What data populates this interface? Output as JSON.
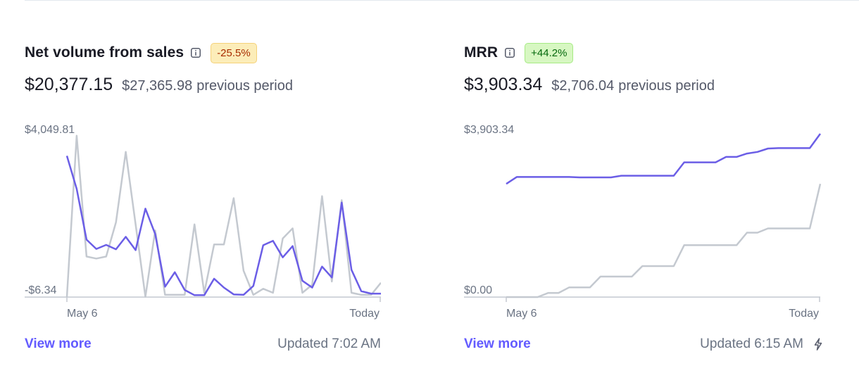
{
  "cards": [
    {
      "title": "Net volume from sales",
      "badge": "-25.5%",
      "value": "$20,377.15",
      "previous_amount": "$27,365.98",
      "previous_label": "previous period",
      "view_more": "View more",
      "updated": "Updated 7:02 AM",
      "icons": {
        "info": "info-icon"
      }
    },
    {
      "title": "MRR",
      "badge": "+44.2%",
      "value": "$3,903.34",
      "previous_amount": "$2,706.04",
      "previous_label": "previous period",
      "view_more": "View more",
      "updated": "Updated 6:15 AM",
      "icons": {
        "info": "info-icon",
        "bolt": "bolt-icon"
      }
    }
  ],
  "colors": {
    "current_series": "#6b5ee6",
    "previous_series": "#c4c9d0",
    "badge_negative_bg": "#fcedb9",
    "badge_positive_bg": "#d7f7c2",
    "link": "#635bff"
  },
  "chart_data": [
    {
      "type": "line",
      "ylim": [
        -6.34,
        4049.81
      ],
      "y_tick_labels": [
        "$4,049.81",
        "-$6.34"
      ],
      "x_tick_labels": [
        "May 6",
        "Today"
      ],
      "series": [
        {
          "values": [
            3500,
            2680,
            1420,
            1190,
            1290,
            1180,
            1490,
            1160,
            2190,
            1560,
            250,
            610,
            170,
            40,
            40,
            450,
            230,
            60,
            50,
            270,
            1280,
            1390,
            980,
            1260,
            400,
            230,
            750,
            480,
            2340,
            670,
            140,
            80,
            80
          ]
        },
        {
          "values": [
            0,
            4000,
            1000,
            950,
            1000,
            1850,
            3600,
            1800,
            0,
            1650,
            50,
            50,
            50,
            1800,
            100,
            1300,
            1300,
            2450,
            650,
            50,
            200,
            100,
            1450,
            1700,
            100,
            300,
            2500,
            380,
            2400,
            100,
            50,
            50,
            350
          ]
        }
      ]
    },
    {
      "type": "line",
      "ylim": [
        0.0,
        3903.34
      ],
      "y_tick_labels": [
        "$3,903.34",
        "$0.00"
      ],
      "x_tick_labels": [
        "May 6",
        "Today"
      ],
      "series": [
        {
          "values": [
            2706,
            2870,
            2870,
            2870,
            2870,
            2870,
            2870,
            2860,
            2860,
            2860,
            2860,
            2900,
            2900,
            2900,
            2900,
            2900,
            2900,
            3220,
            3220,
            3220,
            3220,
            3350,
            3350,
            3430,
            3470,
            3550,
            3560,
            3560,
            3560,
            3560,
            3903
          ]
        },
        {
          "values": [
            0,
            0,
            0,
            0,
            100,
            100,
            230,
            230,
            230,
            490,
            490,
            490,
            490,
            740,
            740,
            740,
            740,
            1240,
            1240,
            1240,
            1240,
            1240,
            1240,
            1540,
            1540,
            1640,
            1640,
            1640,
            1640,
            1640,
            2706
          ]
        }
      ]
    }
  ]
}
